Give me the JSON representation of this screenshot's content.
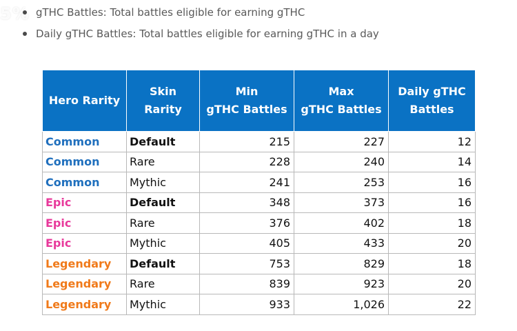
{
  "bullets": [
    "gTHC Battles: Total battles eligible for earning gTHC",
    "Daily gTHC Battles: Total battles eligible for earning gTHC in a day"
  ],
  "watermark": "5%",
  "colors": {
    "header_bg": "#0a72c4",
    "common": "#1f6fbd",
    "epic": "#e8399b",
    "legendary": "#f07a1a"
  },
  "table": {
    "headers": [
      "Hero Rarity",
      "Skin Rarity",
      "Min gTHC Battles",
      "Max gTHC Battles",
      "Daily gTHC Battles"
    ],
    "header_lines": [
      [
        "Hero Rarity"
      ],
      [
        "Skin Rarity"
      ],
      [
        "Min",
        "gTHC Battles"
      ],
      [
        "Max",
        "gTHC Battles"
      ],
      [
        "Daily gTHC",
        "Battles"
      ]
    ],
    "rows": [
      {
        "hero": "Common",
        "hero_class": "common",
        "skin": "Default",
        "skin_bold": true,
        "min": "215",
        "max": "227",
        "daily": "12"
      },
      {
        "hero": "Common",
        "hero_class": "common",
        "skin": "Rare",
        "skin_bold": false,
        "min": "228",
        "max": "240",
        "daily": "14"
      },
      {
        "hero": "Common",
        "hero_class": "common",
        "skin": "Mythic",
        "skin_bold": false,
        "min": "241",
        "max": "253",
        "daily": "16"
      },
      {
        "hero": "Epic",
        "hero_class": "epic",
        "skin": "Default",
        "skin_bold": true,
        "min": "348",
        "max": "373",
        "daily": "16"
      },
      {
        "hero": "Epic",
        "hero_class": "epic",
        "skin": "Rare",
        "skin_bold": false,
        "min": "376",
        "max": "402",
        "daily": "18"
      },
      {
        "hero": "Epic",
        "hero_class": "epic",
        "skin": "Mythic",
        "skin_bold": false,
        "min": "405",
        "max": "433",
        "daily": "20"
      },
      {
        "hero": "Legendary",
        "hero_class": "legendary",
        "skin": "Default",
        "skin_bold": true,
        "min": "753",
        "max": "829",
        "daily": "18"
      },
      {
        "hero": "Legendary",
        "hero_class": "legendary",
        "skin": "Rare",
        "skin_bold": false,
        "min": "839",
        "max": "923",
        "daily": "20"
      },
      {
        "hero": "Legendary",
        "hero_class": "legendary",
        "skin": "Mythic",
        "skin_bold": false,
        "min": "933",
        "max": "1,026",
        "daily": "22"
      }
    ]
  }
}
